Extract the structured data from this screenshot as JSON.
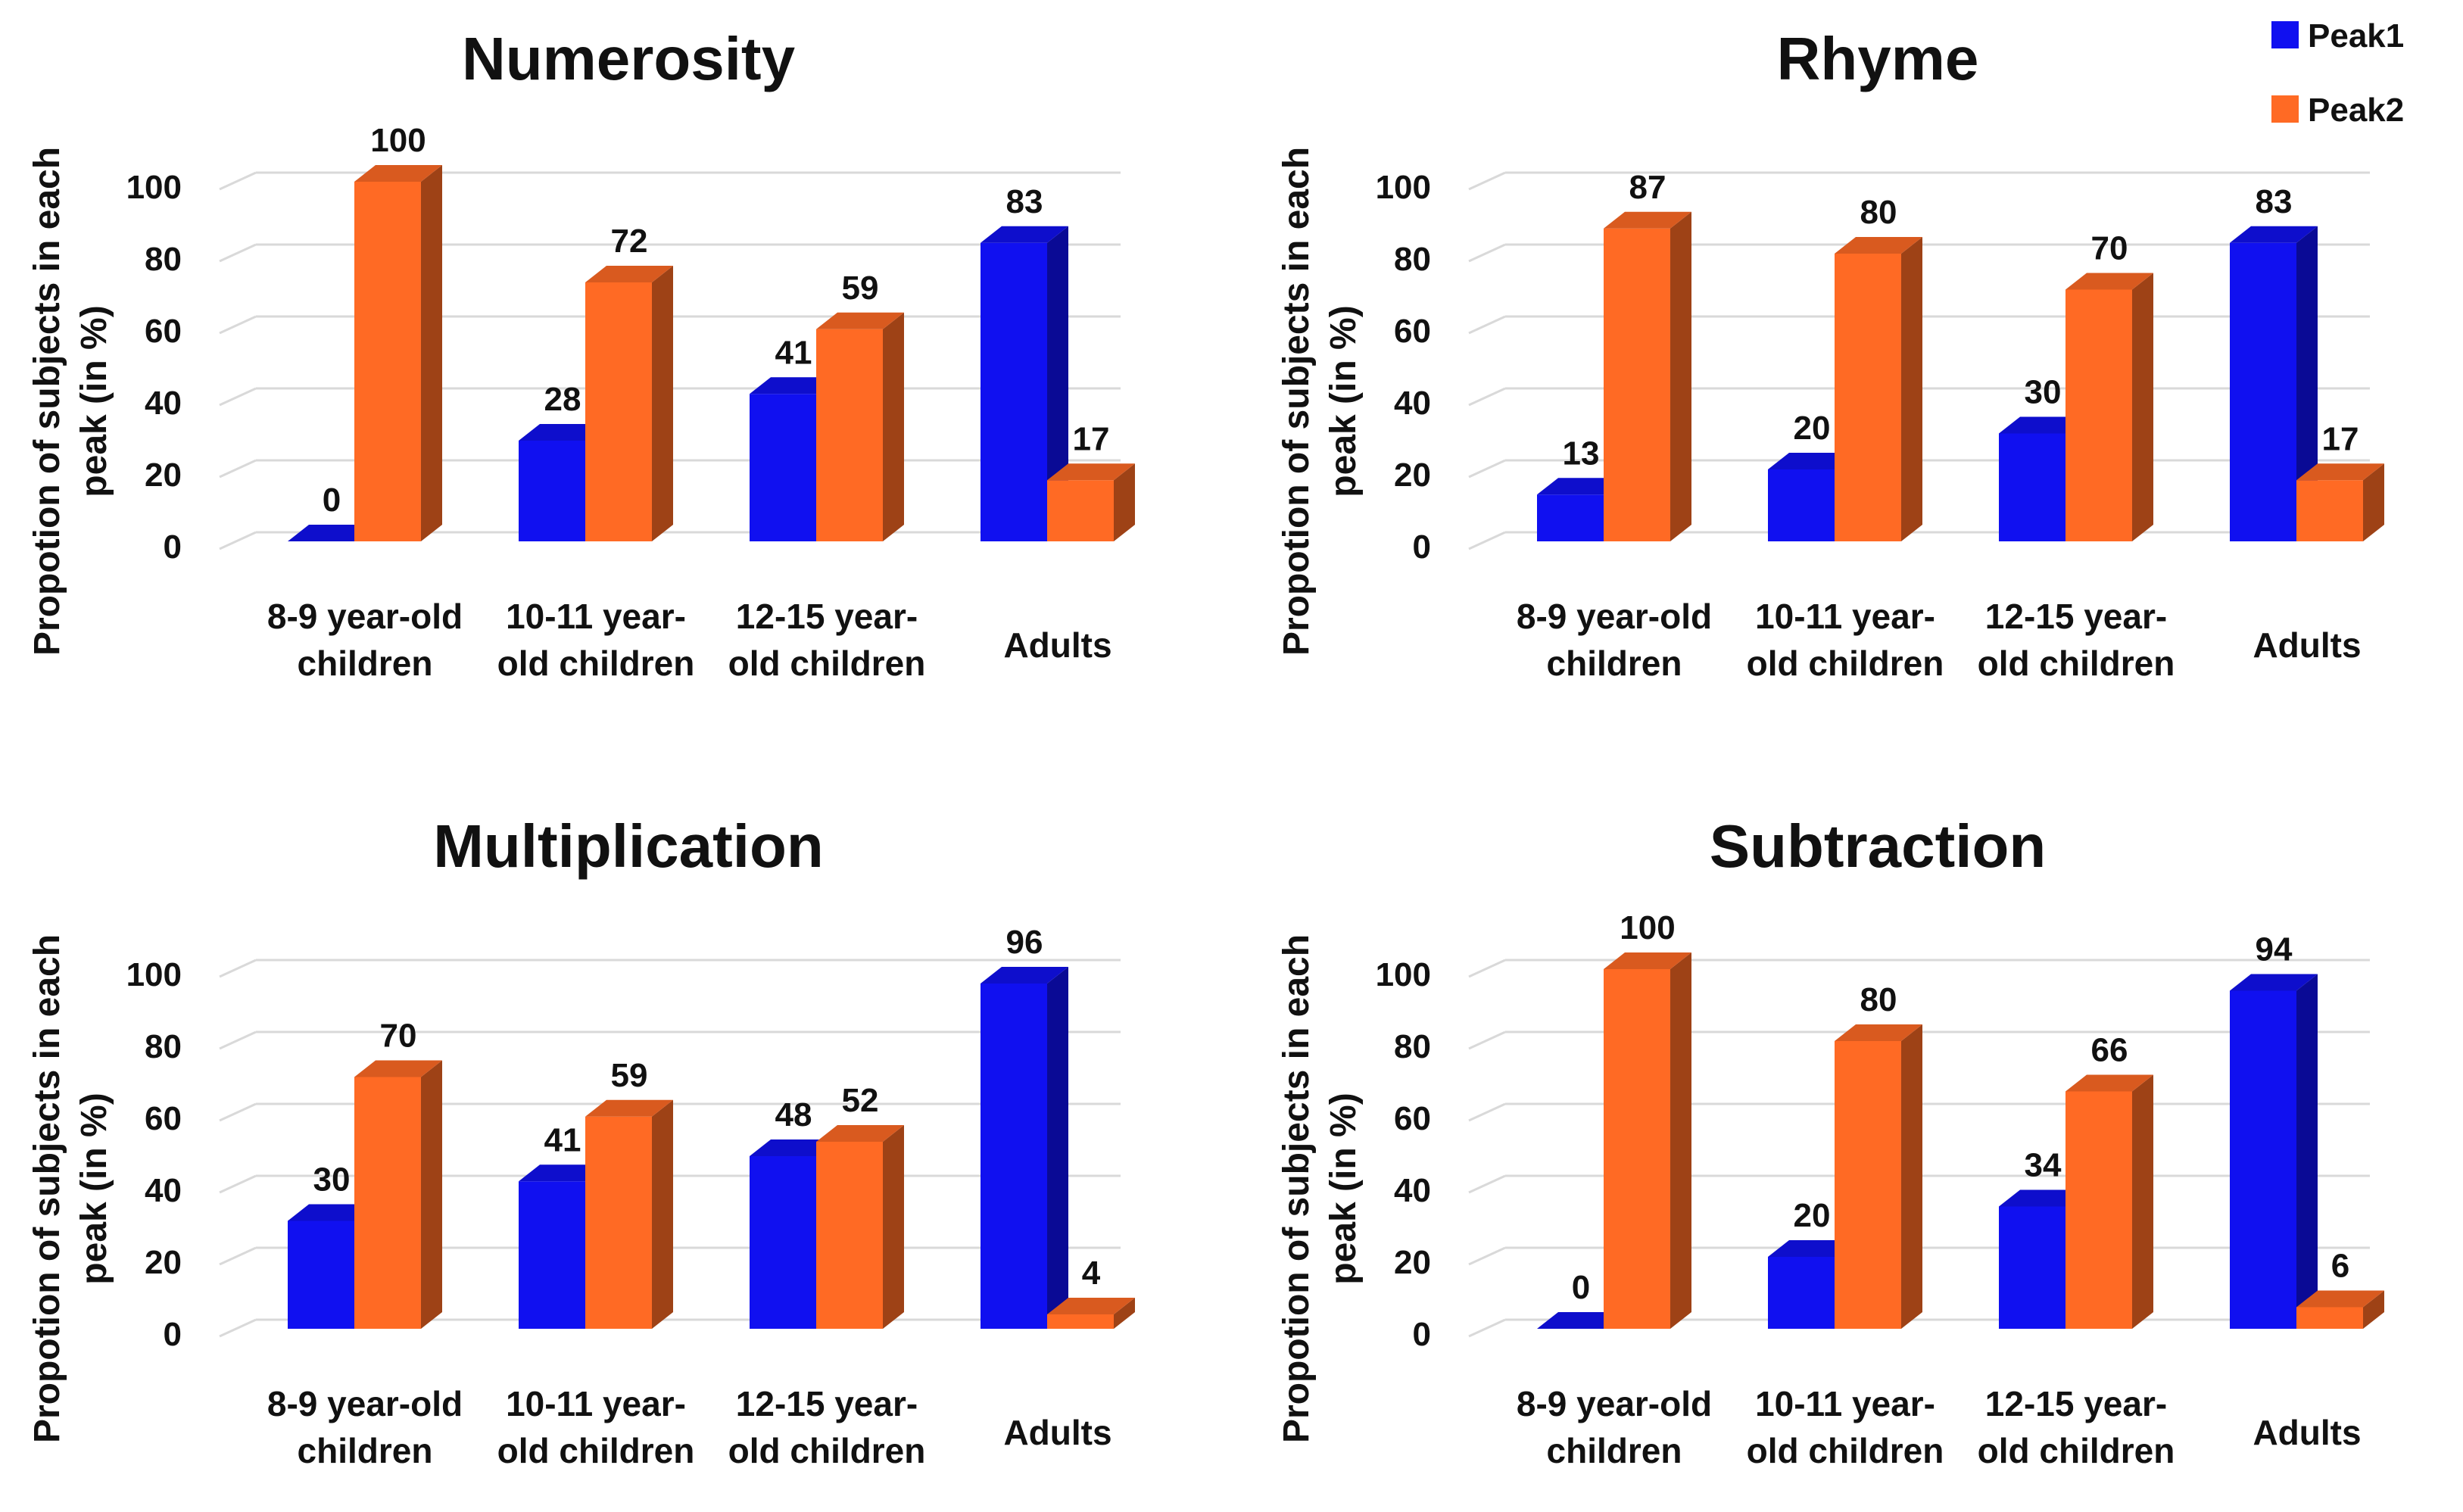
{
  "legend": [
    {
      "name": "Peak1",
      "color": "#1010f0"
    },
    {
      "name": "Peak2",
      "color": "#ff6a24"
    }
  ],
  "chart_data": [
    {
      "type": "bar",
      "title": "Numerosity",
      "ylabel": [
        "Propotion of subjects in each",
        "peak (in %)"
      ],
      "ylim": [
        0,
        100
      ],
      "yticks": [
        "0",
        "20",
        "40",
        "60",
        "80",
        "100"
      ],
      "categories": [
        [
          "8-9 year-old",
          "children"
        ],
        [
          "10-11 year-",
          "old children"
        ],
        [
          "12-15 year-",
          "old children"
        ],
        [
          "Adults"
        ]
      ],
      "series": [
        {
          "name": "Peak1",
          "values": [
            0,
            28,
            41,
            83
          ]
        },
        {
          "name": "Peak2",
          "values": [
            100,
            72,
            59,
            17
          ]
        }
      ]
    },
    {
      "type": "bar",
      "title": "Rhyme",
      "ylabel": [
        "Propotion of subjects in each",
        "peak (in %)"
      ],
      "ylim": [
        0,
        100
      ],
      "yticks": [
        "0",
        "20",
        "40",
        "60",
        "80",
        "100"
      ],
      "categories": [
        [
          "8-9 year-old",
          "children"
        ],
        [
          "10-11 year-",
          "old children"
        ],
        [
          "12-15 year-",
          "old children"
        ],
        [
          "Adults"
        ]
      ],
      "series": [
        {
          "name": "Peak1",
          "values": [
            13,
            20,
            30,
            83
          ]
        },
        {
          "name": "Peak2",
          "values": [
            87,
            80,
            70,
            17
          ]
        }
      ]
    },
    {
      "type": "bar",
      "title": "Multiplication",
      "ylabel": [
        "Propotion of subjects in each",
        "peak (in %)"
      ],
      "ylim": [
        0,
        100
      ],
      "yticks": [
        "0",
        "20",
        "40",
        "60",
        "80",
        "100"
      ],
      "categories": [
        [
          "8-9 year-old",
          "children"
        ],
        [
          "10-11 year-",
          "old children"
        ],
        [
          "12-15 year-",
          "old children"
        ],
        [
          "Adults"
        ]
      ],
      "series": [
        {
          "name": "Peak1",
          "values": [
            30,
            41,
            48,
            96
          ]
        },
        {
          "name": "Peak2",
          "values": [
            70,
            59,
            52,
            4
          ]
        }
      ]
    },
    {
      "type": "bar",
      "title": "Subtraction",
      "ylabel": [
        "Propotion of subjects in each",
        "peak (in %)"
      ],
      "ylim": [
        0,
        100
      ],
      "yticks": [
        "0",
        "20",
        "40",
        "60",
        "80",
        "100"
      ],
      "categories": [
        [
          "8-9 year-old",
          "children"
        ],
        [
          "10-11 year-",
          "old children"
        ],
        [
          "12-15 year-",
          "old children"
        ],
        [
          "Adults"
        ]
      ],
      "series": [
        {
          "name": "Peak1",
          "values": [
            0,
            20,
            34,
            94
          ]
        },
        {
          "name": "Peak2",
          "values": [
            100,
            80,
            66,
            6
          ]
        }
      ]
    }
  ]
}
